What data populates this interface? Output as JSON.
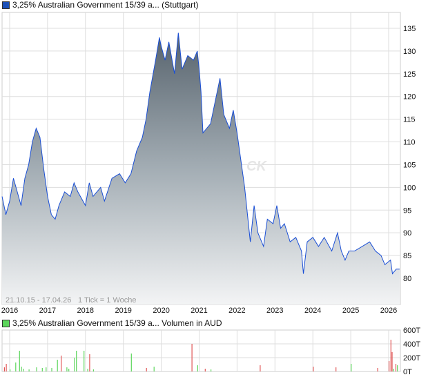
{
  "chart_data": [
    {
      "type": "area",
      "legend": "3,25% Australian Government 15/39 a... (Stuttgart)",
      "legend_color": "#1a4fb8",
      "line_color": "#1a4fd6",
      "info": "21.10.15 - 17.04.26",
      "tick_info": "1 Tick = 1 Woche",
      "watermark": "CK",
      "x_ticks": [
        "2016",
        "2017",
        "2018",
        "2019",
        "2020",
        "2021",
        "2022",
        "2023",
        "2024",
        "2025",
        "2026"
      ],
      "y_ticks": [
        80,
        85,
        90,
        95,
        100,
        105,
        110,
        115,
        120,
        125,
        130,
        135
      ],
      "ylim": [
        75,
        138
      ],
      "xlim": [
        2015.8,
        2026.3
      ],
      "grid": true,
      "x": [
        2015.8,
        2015.9,
        2016.0,
        2016.1,
        2016.2,
        2016.3,
        2016.4,
        2016.5,
        2016.6,
        2016.7,
        2016.8,
        2016.9,
        2017.0,
        2017.1,
        2017.2,
        2017.3,
        2017.45,
        2017.6,
        2017.7,
        2017.8,
        2018.0,
        2018.1,
        2018.2,
        2018.4,
        2018.5,
        2018.7,
        2018.9,
        2019.05,
        2019.2,
        2019.35,
        2019.5,
        2019.6,
        2019.7,
        2019.85,
        2019.95,
        2020.0,
        2020.1,
        2020.2,
        2020.35,
        2020.45,
        2020.55,
        2020.7,
        2020.85,
        2020.95,
        2021.0,
        2021.05,
        2021.1,
        2021.2,
        2021.3,
        2021.45,
        2021.55,
        2021.65,
        2021.8,
        2021.9,
        2022.0,
        2022.1,
        2022.2,
        2022.35,
        2022.45,
        2022.55,
        2022.7,
        2022.8,
        2022.95,
        2023.05,
        2023.15,
        2023.25,
        2023.4,
        2023.55,
        2023.7,
        2023.75,
        2023.85,
        2024.0,
        2024.15,
        2024.3,
        2024.5,
        2024.65,
        2024.75,
        2024.85,
        2024.95,
        2025.1,
        2025.3,
        2025.5,
        2025.65,
        2025.8,
        2025.9,
        2026.05,
        2026.1,
        2026.2,
        2026.29
      ],
      "y": [
        98,
        94,
        97,
        102,
        99,
        96,
        102,
        105,
        110,
        113,
        111,
        104,
        98,
        94,
        93,
        96,
        99,
        98,
        101,
        99,
        96,
        101,
        98,
        100,
        97,
        102,
        103,
        101,
        103,
        108,
        111,
        115,
        121,
        128,
        133,
        131,
        128,
        132,
        125,
        134,
        126,
        129,
        128,
        130,
        126,
        121,
        112,
        113,
        114,
        120,
        124,
        116,
        113,
        117,
        112,
        106,
        100,
        88,
        96,
        90,
        87,
        93,
        92,
        96,
        91,
        92,
        88,
        89,
        86,
        81,
        88,
        89,
        87,
        89,
        86,
        90,
        86,
        84,
        86,
        86,
        87,
        88,
        86,
        85,
        83,
        84,
        81,
        82,
        82
      ]
    },
    {
      "type": "bar",
      "legend": "3,25% Australian Government 15/39 a... Volumen in AUD",
      "legend_color": "#5cd65c",
      "up_color": "#5cd65c",
      "down_color": "#e05555",
      "y_ticks": [
        "0T",
        "200T",
        "400T",
        "600T"
      ],
      "ylim": [
        0,
        600
      ],
      "x": [
        2015.85,
        2015.9,
        2016.0,
        2016.15,
        2016.25,
        2016.3,
        2016.35,
        2016.5,
        2016.7,
        2016.85,
        2016.95,
        2017.1,
        2017.25,
        2017.35,
        2017.5,
        2017.55,
        2017.7,
        2017.75,
        2017.95,
        2018.05,
        2018.1,
        2018.2,
        2019.2,
        2019.6,
        2019.8,
        2020.8,
        2020.95,
        2021.15,
        2021.3,
        2022.6,
        2024.0,
        2024.6,
        2025.0,
        2025.7,
        2026.0,
        2026.05,
        2026.08,
        2026.12,
        2026.18,
        2026.22
      ],
      "values": [
        60,
        110,
        30,
        130,
        300,
        70,
        40,
        30,
        60,
        50,
        60,
        50,
        170,
        230,
        60,
        40,
        200,
        300,
        300,
        40,
        250,
        30,
        260,
        50,
        70,
        400,
        90,
        40,
        30,
        90,
        70,
        60,
        110,
        50,
        150,
        460,
        280,
        40,
        110,
        90
      ],
      "up": [
        false,
        false,
        true,
        true,
        true,
        true,
        true,
        true,
        true,
        true,
        true,
        true,
        true,
        false,
        true,
        true,
        true,
        true,
        true,
        true,
        false,
        true,
        true,
        false,
        true,
        false,
        true,
        false,
        true,
        false,
        false,
        false,
        true,
        false,
        false,
        false,
        false,
        true,
        false,
        true
      ]
    }
  ]
}
